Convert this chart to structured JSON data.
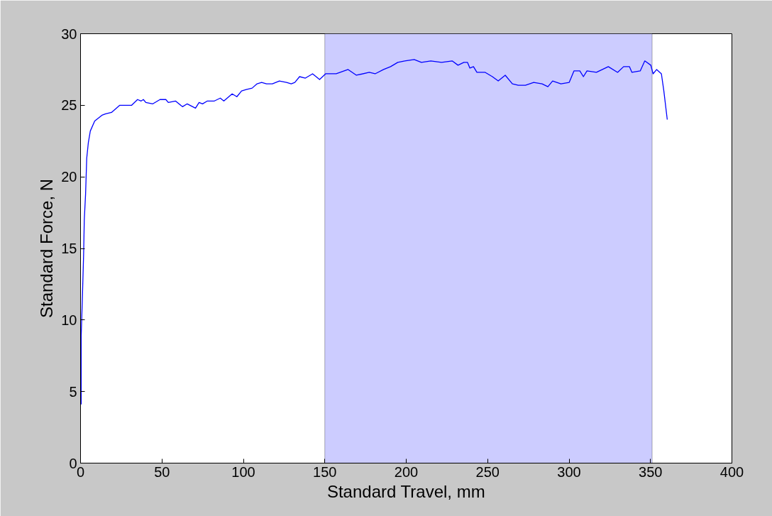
{
  "chart_data": {
    "type": "line",
    "xlabel": "Standard Travel, mm",
    "ylabel": "Standard Force, N",
    "x": [
      0.4,
      0.4,
      1.2,
      1.9,
      2.3,
      3.1,
      3.8,
      4.8,
      6.0,
      8.7,
      13.1,
      15.4,
      19.0,
      24.1,
      31.4,
      35.0,
      37.2,
      38.6,
      40.1,
      44.4,
      48.8,
      52.4,
      53.9,
      58.3,
      62.6,
      65.5,
      70.6,
      72.8,
      74.9,
      77.9,
      82.2,
      85.8,
      88.0,
      93.1,
      96.0,
      98.9,
      101.8,
      105.4,
      108.4,
      111.2,
      114.2,
      117.8,
      122.1,
      126.5,
      129.4,
      131.6,
      134.5,
      138.1,
      142.5,
      146.8,
      150.5,
      157.0,
      164.3,
      169.4,
      177.3,
      180.9,
      186.1,
      190.4,
      194.8,
      199.1,
      204.9,
      209.3,
      215.1,
      221.7,
      228.2,
      231.8,
      235.4,
      237.6,
      239.1,
      241.3,
      243.4,
      248.5,
      252.9,
      256.5,
      260.8,
      265.2,
      268.8,
      273.2,
      278.3,
      283.4,
      287.0,
      289.9,
      295.0,
      300.1,
      303.0,
      306.6,
      308.8,
      311.0,
      316.8,
      324.1,
      329.8,
      333.5,
      337.1,
      338.6,
      343.7,
      346.5,
      350.2,
      351.6,
      353.8,
      356.7,
      358.2,
      360.3
    ],
    "series": [
      {
        "color": "#0000ff",
        "values": [
          4.1,
          8.9,
          11.8,
          14.6,
          17.0,
          18.8,
          21.3,
          22.4,
          23.2,
          23.9,
          24.3,
          24.4,
          24.5,
          25.0,
          25.0,
          25.4,
          25.3,
          25.4,
          25.2,
          25.1,
          25.4,
          25.4,
          25.2,
          25.3,
          24.9,
          25.1,
          24.8,
          25.2,
          25.1,
          25.3,
          25.3,
          25.5,
          25.3,
          25.8,
          25.6,
          26.0,
          26.1,
          26.2,
          26.5,
          26.6,
          26.5,
          26.5,
          26.7,
          26.6,
          26.5,
          26.6,
          27.0,
          26.9,
          27.2,
          26.8,
          27.2,
          27.2,
          27.5,
          27.1,
          27.3,
          27.2,
          27.5,
          27.7,
          28.0,
          28.1,
          28.2,
          28.0,
          28.1,
          28.0,
          28.1,
          27.8,
          28.0,
          28.0,
          27.6,
          27.7,
          27.3,
          27.3,
          27.0,
          26.7,
          27.1,
          26.5,
          26.4,
          26.4,
          26.6,
          26.5,
          26.3,
          26.7,
          26.5,
          26.6,
          27.4,
          27.4,
          27.0,
          27.4,
          27.3,
          27.7,
          27.3,
          27.7,
          27.7,
          27.3,
          27.4,
          28.1,
          27.8,
          27.2,
          27.5,
          27.2,
          26.0,
          24.0
        ]
      }
    ],
    "bands": [
      {
        "axis": "x",
        "from": 150,
        "to": 351,
        "color": "#ccccff"
      }
    ],
    "xlim": [
      0,
      400
    ],
    "xticks": [
      0,
      50,
      100,
      150,
      200,
      250,
      300,
      350,
      400
    ],
    "ylim": [
      0,
      30
    ],
    "yticks": [
      0,
      5,
      10,
      15,
      20,
      25,
      30
    ],
    "grid": false,
    "marker": "none",
    "line_style": "solid"
  }
}
